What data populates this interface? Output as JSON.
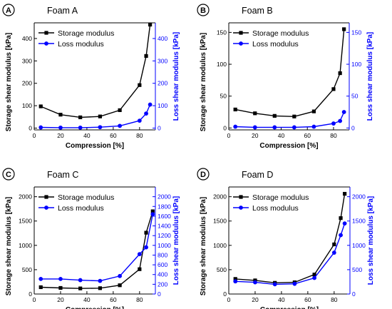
{
  "colors": {
    "storage": "#000000",
    "loss": "#0000ff",
    "axis": "#000000",
    "loss_axis": "#0000ff"
  },
  "chart_data": [
    {
      "panel_label": "A",
      "title": "Foam A",
      "type": "line",
      "xlabel": "Compression [%]",
      "ylabel_left": "Storage shear modulus [kPa]",
      "ylabel_right": "Loss shear modulus [kPa]",
      "xlim": [
        0,
        92
      ],
      "xticks": [
        0,
        20,
        40,
        60,
        80
      ],
      "ylim_left": [
        -8,
        470
      ],
      "yticks_left": [
        0,
        100,
        200,
        300,
        400
      ],
      "ylim_right": [
        -8,
        470
      ],
      "yticks_right": [
        0,
        100,
        200,
        300,
        400
      ],
      "grid": false,
      "legend_position": "top-left",
      "series": [
        {
          "name": "Storage modulus",
          "axis": "left",
          "marker": "square",
          "x": [
            5,
            20,
            35,
            50,
            65,
            80,
            85,
            88
          ],
          "y": [
            97,
            60,
            48,
            52,
            80,
            192,
            322,
            462
          ]
        },
        {
          "name": "Loss modulus",
          "axis": "right",
          "marker": "circle",
          "x": [
            5,
            20,
            35,
            50,
            65,
            80,
            85,
            88
          ],
          "y": [
            3,
            2,
            2,
            4,
            10,
            33,
            65,
            105
          ]
        }
      ]
    },
    {
      "panel_label": "B",
      "title": "Foam B",
      "type": "line",
      "xlabel": "Compression [%]",
      "ylabel_left": "Storage shear modulus [kPa]",
      "ylabel_right": "Loss shear modulus [kPa]",
      "xlim": [
        0,
        92
      ],
      "xticks": [
        0,
        20,
        40,
        60,
        80
      ],
      "ylim_left": [
        -3,
        165
      ],
      "yticks_left": [
        0,
        50,
        100,
        150
      ],
      "ylim_right": [
        -3,
        165
      ],
      "yticks_right": [
        0,
        50,
        100,
        150
      ],
      "grid": false,
      "legend_position": "top-left",
      "series": [
        {
          "name": "Storage modulus",
          "axis": "left",
          "marker": "square",
          "x": [
            5,
            20,
            35,
            50,
            65,
            80,
            85,
            88
          ],
          "y": [
            29,
            23,
            19,
            18,
            26,
            61,
            86,
            155
          ]
        },
        {
          "name": "Loss modulus",
          "axis": "right",
          "marker": "circle",
          "x": [
            5,
            20,
            35,
            50,
            65,
            80,
            85,
            88
          ],
          "y": [
            2,
            1,
            1,
            1,
            2,
            7,
            11,
            25
          ]
        }
      ]
    },
    {
      "panel_label": "C",
      "title": "Foam C",
      "type": "line",
      "xlabel": "Compression [%]",
      "ylabel_left": "Storage shear modulus [kPa]",
      "ylabel_right": "Loss shear modulus [kPa]",
      "xlim": [
        0,
        92
      ],
      "xticks": [
        0,
        20,
        40,
        60,
        80
      ],
      "ylim_left": [
        0,
        2200
      ],
      "yticks_left": [
        0,
        500,
        1000,
        1500,
        2000
      ],
      "ylim_right": [
        0,
        2200
      ],
      "yticks_right": [
        0,
        200,
        400,
        600,
        800,
        1000,
        1200,
        1400,
        1600,
        1800,
        2000
      ],
      "grid": false,
      "legend_position": "top-left",
      "series": [
        {
          "name": "Storage modulus",
          "axis": "left",
          "marker": "square",
          "x": [
            5,
            20,
            35,
            50,
            65,
            80,
            85,
            90
          ],
          "y": [
            140,
            125,
            115,
            120,
            180,
            510,
            1260,
            1700
          ]
        },
        {
          "name": "Loss modulus",
          "axis": "right",
          "marker": "circle",
          "x": [
            5,
            20,
            35,
            50,
            65,
            80,
            85,
            90
          ],
          "y": [
            310,
            310,
            285,
            270,
            370,
            820,
            960,
            1640
          ]
        }
      ]
    },
    {
      "panel_label": "D",
      "title": "Foam D",
      "type": "line",
      "xlabel": "Compression [%]",
      "ylabel_left": "Storage shear modulus [kPa]",
      "ylabel_right": "Loss shear modulus [kPa]",
      "xlim": [
        0,
        92
      ],
      "xticks": [
        0,
        20,
        40,
        60,
        80
      ],
      "ylim_left": [
        0,
        2200
      ],
      "yticks_left": [
        0,
        500,
        1000,
        1500,
        2000
      ],
      "ylim_right": [
        0,
        2200
      ],
      "yticks_right": [
        0,
        500,
        1000,
        1500,
        2000
      ],
      "grid": false,
      "legend_position": "top-left",
      "series": [
        {
          "name": "Storage modulus",
          "axis": "left",
          "marker": "square",
          "x": [
            5,
            20,
            35,
            50,
            65,
            80,
            85,
            88
          ],
          "y": [
            310,
            280,
            230,
            240,
            400,
            1020,
            1560,
            2060
          ]
        },
        {
          "name": "Loss modulus",
          "axis": "right",
          "marker": "circle",
          "x": [
            5,
            20,
            35,
            50,
            65,
            80,
            85,
            88
          ],
          "y": [
            260,
            240,
            200,
            210,
            330,
            850,
            1210,
            1450
          ]
        }
      ]
    }
  ]
}
